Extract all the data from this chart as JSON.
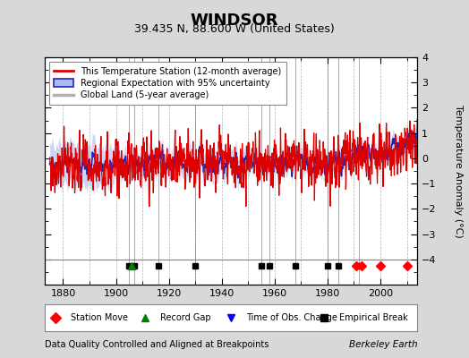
{
  "title": "WINDSOR",
  "subtitle": "39.435 N, 88.600 W (United States)",
  "ylabel": "Temperature Anomaly (°C)",
  "xlabel_note": "Data Quality Controlled and Aligned at Breakpoints",
  "attribution": "Berkeley Earth",
  "year_start": 1875,
  "year_end": 2013,
  "ylim": [
    -5,
    4
  ],
  "yticks": [
    -4,
    -3,
    -2,
    -1,
    0,
    1,
    2,
    3,
    4
  ],
  "xticks": [
    1880,
    1900,
    1920,
    1940,
    1960,
    1980,
    2000
  ],
  "bg_color": "#d8d8d8",
  "plot_bg_color": "#ffffff",
  "station_color": "#dd0000",
  "regional_color": "#2222bb",
  "regional_fill": "#aabbee",
  "global_color": "#b0b0b0",
  "marker_bottom": -4.2,
  "station_move_years": [
    1991,
    1993,
    2000,
    2010
  ],
  "record_gap_years": [
    1906
  ],
  "obs_change_years": [],
  "empirical_break_years": [
    1905,
    1907,
    1916,
    1930,
    1955,
    1958,
    1968,
    1980,
    1984,
    1992
  ]
}
